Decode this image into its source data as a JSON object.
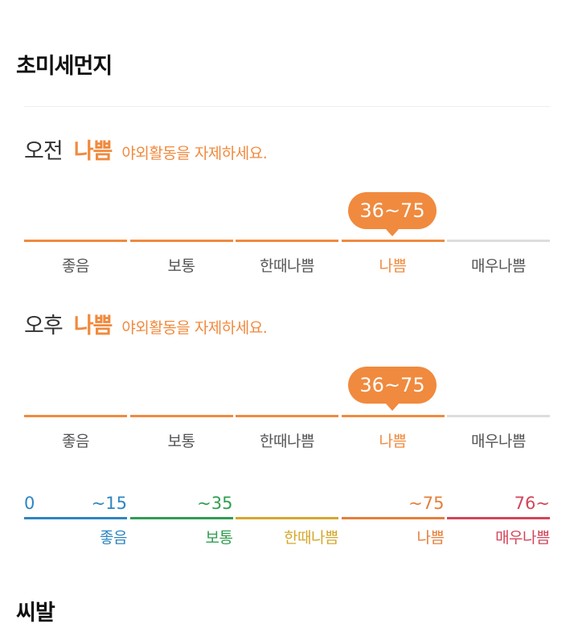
{
  "title": "초미세먼지",
  "footer": "씨발",
  "colors": {
    "accent": "#f08a3e",
    "inactive": "#dddddd",
    "good": "#2e86c1",
    "normal": "#2f9e50",
    "sensitive": "#d4a72c",
    "bad": "#e67e3a",
    "very_bad": "#d2455a"
  },
  "categories": [
    "좋음",
    "보통",
    "한때나쁨",
    "나쁨",
    "매우나쁨"
  ],
  "periods": [
    {
      "label": "오전",
      "grade": "나쁨",
      "message": "야외활동을 자제하세요.",
      "range": "36~75",
      "active_index": 3
    },
    {
      "label": "오후",
      "grade": "나쁨",
      "message": "야외활동을 자제하세요.",
      "range": "36~75",
      "active_index": 3
    }
  ],
  "legend": {
    "start": "0",
    "thresholds": [
      "~15",
      "~35",
      "",
      "~75",
      "76~"
    ],
    "names": [
      "좋음",
      "보통",
      "한때나쁨",
      "나쁨",
      "매우나쁨"
    ]
  }
}
